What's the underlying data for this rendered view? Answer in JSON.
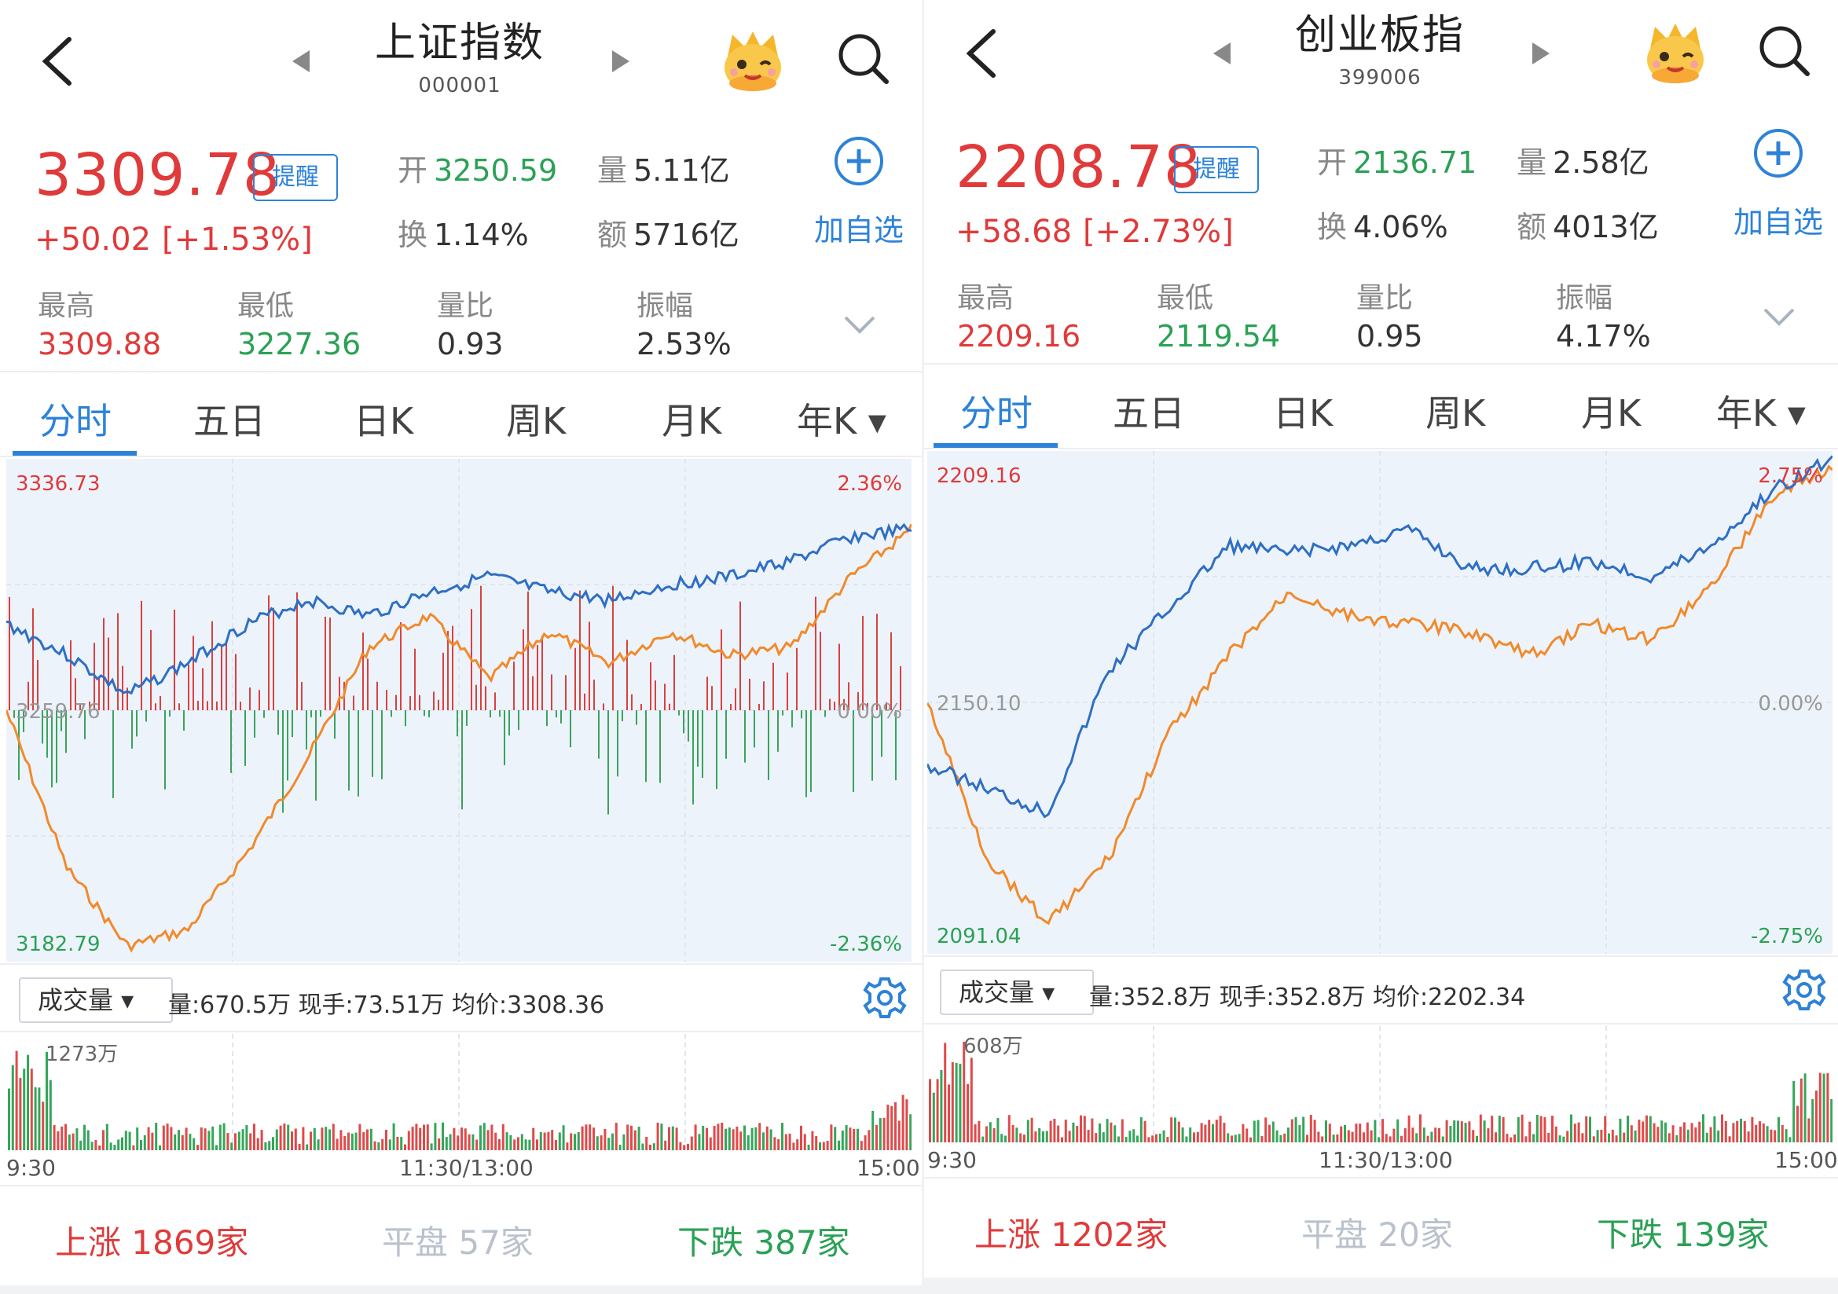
{
  "panels": [
    {
      "title": "上证指数",
      "code": "000001",
      "price": "3309.78",
      "alert_label": "提醒",
      "change": "+50.02",
      "change_pct": "[+1.53%]",
      "stats": {
        "open_label": "开",
        "open": "3250.59",
        "volume_label": "量",
        "volume": "5.11亿",
        "turnover_label": "换",
        "turnover": "1.14%",
        "amount_label": "额",
        "amount": "5716亿"
      },
      "add_label": "加自选",
      "row": {
        "high_label": "最高",
        "high": "3309.88",
        "low_label": "最低",
        "low": "3227.36",
        "ratio_label": "量比",
        "ratio": "0.93",
        "amp_label": "振幅",
        "amp": "2.53%"
      },
      "tabs": [
        "分时",
        "五日",
        "日K",
        "周K",
        "月K",
        "年K ▾"
      ],
      "chart": {
        "top_price": "3336.73",
        "top_pct": "2.36%",
        "mid_price": "3259.76",
        "mid_pct": "0.00%",
        "bot_price": "3182.79",
        "bot_pct": "-2.36%"
      },
      "volume_select": "成交量 ▾",
      "volume_info": "量:670.5万  现手:73.51万  均价:3308.36",
      "vol_max": "1273万",
      "time_start": "9:30",
      "time_mid": "11:30/13:00",
      "time_end": "15:00",
      "breadth": {
        "up_label": "上涨",
        "up": "1869家",
        "flat_label": "平盘",
        "flat": "57家",
        "down_label": "下跌",
        "down": "387家"
      }
    },
    {
      "title": "创业板指",
      "code": "399006",
      "price": "2208.78",
      "alert_label": "提醒",
      "change": "+58.68",
      "change_pct": "[+2.73%]",
      "stats": {
        "open_label": "开",
        "open": "2136.71",
        "volume_label": "量",
        "volume": "2.58亿",
        "turnover_label": "换",
        "turnover": "4.06%",
        "amount_label": "额",
        "amount": "4013亿"
      },
      "add_label": "加自选",
      "row": {
        "high_label": "最高",
        "high": "2209.16",
        "low_label": "最低",
        "low": "2119.54",
        "ratio_label": "量比",
        "ratio": "0.95",
        "amp_label": "振幅",
        "amp": "4.17%"
      },
      "tabs": [
        "分时",
        "五日",
        "日K",
        "周K",
        "月K",
        "年K ▾"
      ],
      "chart": {
        "top_price": "2209.16",
        "top_pct": "2.75%",
        "mid_price": "2150.10",
        "mid_pct": "0.00%",
        "bot_price": "2091.04",
        "bot_pct": "-2.75%"
      },
      "volume_select": "成交量 ▾",
      "volume_info": "量:352.8万  现手:352.8万  均价:2202.34",
      "vol_max": "608万",
      "time_start": "9:30",
      "time_mid": "11:30/13:00",
      "time_end": "15:00",
      "breadth": {
        "up_label": "上涨",
        "up": "1202家",
        "flat_label": "平盘",
        "flat": "20家",
        "down_label": "下跌",
        "down": "139家"
      }
    }
  ],
  "colors": {
    "up": "#e03a3a",
    "down": "#2aa155",
    "accent": "#2d82d8",
    "price_line": "#2e6fc4",
    "avg_line": "#f08a2c",
    "chart_bg": "#edf3fb"
  },
  "icons": [
    "back-arrow-icon",
    "prev-triangle-icon",
    "next-triangle-icon",
    "mascot-icon",
    "search-icon",
    "add-circle-icon",
    "chevron-down-icon",
    "gear-icon"
  ]
}
